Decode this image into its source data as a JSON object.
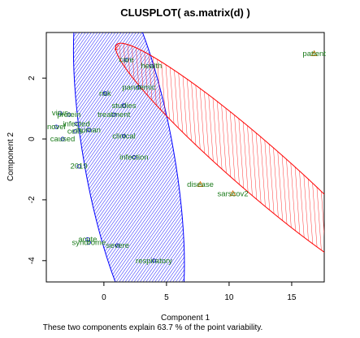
{
  "chart_data": {
    "type": "scatter",
    "title": "CLUSPLOT( as.matrix(d) )",
    "xlabel": "Component 1",
    "ylabel": "Component 2",
    "subtitle": "These two components explain 63.7 % of the point variability.",
    "xlim": [
      -4.6,
      17.6
    ],
    "ylim": [
      -4.7,
      3.5
    ],
    "xticks": [
      0,
      5,
      10,
      15
    ],
    "yticks": [
      -4,
      -2,
      0,
      2
    ],
    "clusters": [
      {
        "label": "1",
        "color": "#0000ff",
        "center": [
          2.0,
          -0.6
        ],
        "semi_axes": [
          3.6,
          6.3
        ],
        "angle_deg": -10
      },
      {
        "label": "2",
        "color": "#ff0000",
        "center": [
          12.2,
          -0.9
        ],
        "semi_axes": [
          2.0,
          6.1
        ],
        "angle_deg": -49
      }
    ],
    "points": [
      {
        "label": "care",
        "x": 1.8,
        "y": 2.6
      },
      {
        "label": "health",
        "x": 3.8,
        "y": 2.4
      },
      {
        "label": "pandemic",
        "x": 2.8,
        "y": 1.7
      },
      {
        "label": "risk",
        "x": 0.1,
        "y": 1.5
      },
      {
        "label": "studies",
        "x": 1.6,
        "y": 1.1
      },
      {
        "label": "treatment",
        "x": 0.8,
        "y": 0.8
      },
      {
        "label": "infected",
        "x": -2.2,
        "y": 0.5
      },
      {
        "label": "disease",
        "x": 7.7,
        "y": -1.5
      },
      {
        "label": "sarscov2",
        "x": 10.3,
        "y": -1.8
      },
      {
        "label": "patient",
        "x": 16.8,
        "y": 2.8
      },
      {
        "label": "clinical",
        "x": 1.6,
        "y": 0.1
      },
      {
        "label": "infection",
        "x": 2.4,
        "y": -0.6
      },
      {
        "label": "caused",
        "x": -3.3,
        "y": 0.0
      },
      {
        "label": "novel",
        "x": -3.8,
        "y": 0.4
      },
      {
        "label": "cells",
        "x": -2.3,
        "y": 0.25
      },
      {
        "label": "human",
        "x": -1.2,
        "y": 0.3
      },
      {
        "label": "protein",
        "x": -2.8,
        "y": 0.8
      },
      {
        "label": "virus",
        "x": -3.5,
        "y": 0.85
      },
      {
        "label": "2019",
        "x": -2.0,
        "y": -0.9
      },
      {
        "label": "acute",
        "x": -1.3,
        "y": -3.3
      },
      {
        "label": "syndrome",
        "x": -1.2,
        "y": -3.4
      },
      {
        "label": "severe",
        "x": 1.1,
        "y": -3.5
      },
      {
        "label": "respiratory",
        "x": 4.0,
        "y": -4.0
      }
    ]
  }
}
